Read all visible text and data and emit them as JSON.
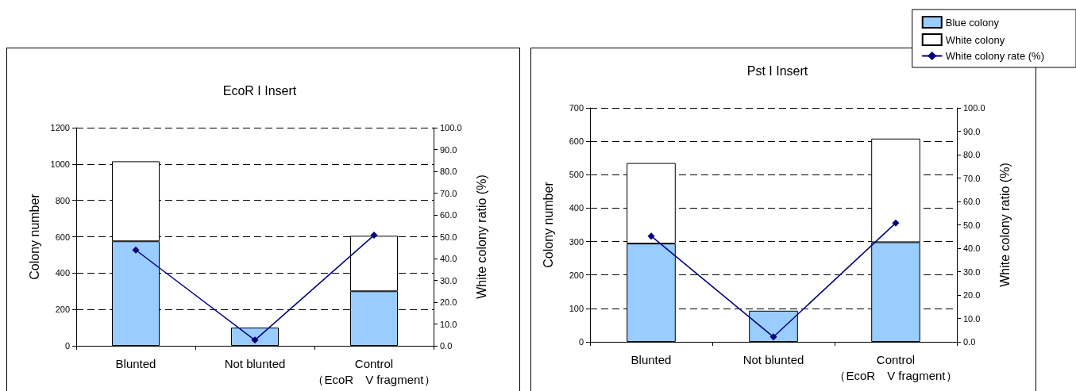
{
  "chart_data": [
    {
      "type": "bar",
      "title": "EcoR I Insert",
      "ylabel": "Colony number",
      "y2label": "White colony ratio (%)",
      "categories": [
        "Blunted",
        "Not blunted",
        "Control\n（EcoR　V fragment）"
      ],
      "stacked": true,
      "series": [
        {
          "color": "#99ccff",
          "values": [
            575,
            100,
            300
          ]
        },
        {
          "color": "#ffffff",
          "values": [
            440,
            null,
            305
          ]
        },
        {
          "type": "line",
          "axis": "y2",
          "color": "#000080",
          "values": [
            43.9,
            2.6,
            50.7
          ]
        }
      ],
      "ylim": [
        0,
        1200
      ],
      "yticks": [
        0,
        200,
        400,
        600,
        800,
        1000,
        1200
      ],
      "y2lim": [
        0,
        100
      ],
      "y2ticks": [
        {
          "value": 0,
          "label": "0.0"
        },
        {
          "value": 10,
          "label": "10.0"
        },
        {
          "value": 20,
          "label": "20.0"
        },
        {
          "value": 30,
          "label": "30.0"
        },
        {
          "value": 40,
          "label": "40.0"
        },
        {
          "value": 50,
          "label": "50.0"
        },
        {
          "value": 60,
          "label": "60.0"
        },
        {
          "value": 70,
          "label": "70.0"
        },
        {
          "value": 80,
          "label": "80.0"
        },
        {
          "value": 90,
          "label": "90.0"
        },
        {
          "value": 100,
          "label": "100.0"
        }
      ],
      "grid": "y",
      "marker": "diamond",
      "line_style": "solid"
    },
    {
      "type": "bar",
      "title": "Pst I Insert",
      "ylabel": "Colony number",
      "y2label": "White colony ratio (%)",
      "categories": [
        "Blunted",
        "Not blunted",
        "Control\n（EcoR　V fragment）"
      ],
      "stacked": true,
      "series": [
        {
          "name": "Blue colony",
          "color": "#99ccff",
          "values": [
            294,
            93,
            298
          ]
        },
        {
          "name": "White colony",
          "color": "#ffffff",
          "values": [
            241,
            null,
            310
          ]
        },
        {
          "type": "line",
          "name": "White colony rate (%)",
          "axis": "y2",
          "color": "#000080",
          "values": [
            45.2,
            2.1,
            50.8
          ]
        }
      ],
      "ylim": [
        0,
        700
      ],
      "yticks": [
        0,
        100,
        200,
        300,
        400,
        500,
        600,
        700
      ],
      "y2lim": [
        0,
        100
      ],
      "y2ticks": [
        {
          "value": 0,
          "label": "0.0"
        },
        {
          "value": 10,
          "label": "10.0"
        },
        {
          "value": 20,
          "label": "20.0"
        },
        {
          "value": 30,
          "label": "30.0"
        },
        {
          "value": 40,
          "label": "40.0"
        },
        {
          "value": 50,
          "label": "50.0"
        },
        {
          "value": 60,
          "label": "60.0"
        },
        {
          "value": 70,
          "label": "70.0"
        },
        {
          "value": 80,
          "label": "80.0"
        },
        {
          "value": 90,
          "label": "90.0"
        },
        {
          "value": 100,
          "label": "100.0"
        }
      ],
      "grid": "y",
      "marker": "diamond",
      "line_style": "solid",
      "legend": "top right"
    }
  ]
}
